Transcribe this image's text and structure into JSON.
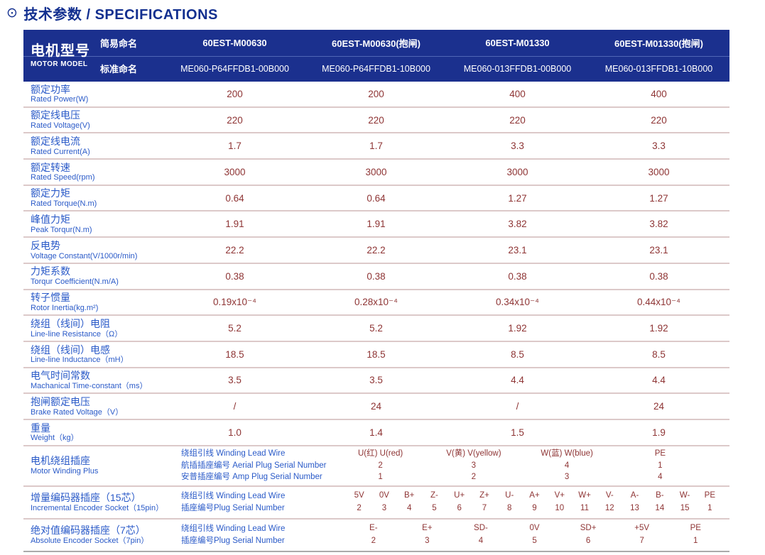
{
  "colors": {
    "title_blue": "#122f8f",
    "header_bg": "#1b308e",
    "header_divider": "#5066b6",
    "label_blue": "#2a5ac8",
    "value_maroon": "#8e3434",
    "row_divider": "#dcc9c9",
    "bottom_border": "#ababab"
  },
  "title": {
    "icon": "⊙",
    "text": "技术参数 / SPECIFICATIONS"
  },
  "header": {
    "model_cn": "电机型号",
    "model_en": "MOTOR MODEL",
    "simple_label": "简易命名",
    "standard_label": "标准命名",
    "simple_names": [
      "60EST-M00630",
      "60EST-M00630(抱闸)",
      "60EST-M01330",
      "60EST-M01330(抱闸)"
    ],
    "standard_names": [
      "ME060-P64FFDB1-00B000",
      "ME060-P64FFDB1-10B000",
      "ME060-013FFDB1-00B000",
      "ME060-013FFDB1-10B000"
    ]
  },
  "spec_rows": [
    {
      "cn": "额定功率",
      "en": "Rated Power(W)",
      "values": [
        "200",
        "200",
        "400",
        "400"
      ]
    },
    {
      "cn": "额定线电压",
      "en": "Rated Voltage(V)",
      "values": [
        "220",
        "220",
        "220",
        "220"
      ]
    },
    {
      "cn": "额定线电流",
      "en": "Rated Current(A)",
      "values": [
        "1.7",
        "1.7",
        "3.3",
        "3.3"
      ]
    },
    {
      "cn": "额定转速",
      "en": "Rated Speed(rpm)",
      "values": [
        "3000",
        "3000",
        "3000",
        "3000"
      ]
    },
    {
      "cn": "额定力矩",
      "en": "Rated Torque(N.m)",
      "values": [
        "0.64",
        "0.64",
        "1.27",
        "1.27"
      ]
    },
    {
      "cn": "峰值力矩",
      "en": "Peak Torqur(N.m)",
      "values": [
        "1.91",
        "1.91",
        "3.82",
        "3.82"
      ]
    },
    {
      "cn": "反电势",
      "en": "Voltage Constant(V/1000r/min)",
      "values": [
        "22.2",
        "22.2",
        "23.1",
        "23.1"
      ]
    },
    {
      "cn": "力矩系数",
      "en": "Torqur Coefficient(N.m/A)",
      "values": [
        "0.38",
        "0.38",
        "0.38",
        "0.38"
      ]
    },
    {
      "cn": "转子惯量",
      "en": "Rotor Inertia(kg.m²)",
      "values": [
        "0.19x10⁻⁴",
        "0.28x10⁻⁴",
        "0.34x10⁻⁴",
        "0.44x10⁻⁴"
      ]
    },
    {
      "cn": "绕组（线间）电阻",
      "en": "Line-line Resistance（Ω）",
      "values": [
        "5.2",
        "5.2",
        "1.92",
        "1.92"
      ]
    },
    {
      "cn": "绕组（线间）电感",
      "en": "Line-line Inductance（mH）",
      "values": [
        "18.5",
        "18.5",
        "8.5",
        "8.5"
      ]
    },
    {
      "cn": "电气时间常数",
      "en": "Machanical Time-constant（ms）",
      "values": [
        "3.5",
        "3.5",
        "4.4",
        "4.4"
      ]
    },
    {
      "cn": "抱闸额定电压",
      "en": "Brake Rated Voltage（V）",
      "values": [
        "/",
        "24",
        "/",
        "24"
      ]
    },
    {
      "cn": "重量",
      "en": "Weight（kg）",
      "values": [
        "1.0",
        "1.4",
        "1.5",
        "1.9"
      ]
    }
  ],
  "winding_socket": {
    "label_cn": "电机绕组插座",
    "label_en": "Motor Winding Plus",
    "sublabels": [
      "绕组引线 Winding Lead Wire",
      "航插插座编号 Aerial Plug Serial Number",
      "安普插座编号 Amp Plug Serial Number"
    ],
    "columns": [
      {
        "signal": "U(红) U(red)",
        "aerial_pin": "2",
        "amp_pin": "1"
      },
      {
        "signal": "V(黄) V(yellow)",
        "aerial_pin": "3",
        "amp_pin": "2"
      },
      {
        "signal": "W(蓝) W(blue)",
        "aerial_pin": "4",
        "amp_pin": "3"
      },
      {
        "signal": "PE",
        "aerial_pin": "1",
        "amp_pin": "4"
      }
    ]
  },
  "incremental_socket": {
    "label_cn": "增量编码器插座（15芯）",
    "label_en": "Incremental Encoder Socket（15pin）",
    "sublabels": [
      "绕组引线 Winding Lead Wire",
      "插座编号Plug Serial Number"
    ],
    "pins": [
      {
        "signal": "5V",
        "pin": "2"
      },
      {
        "signal": "0V",
        "pin": "3"
      },
      {
        "signal": "B+",
        "pin": "4"
      },
      {
        "signal": "Z-",
        "pin": "5"
      },
      {
        "signal": "U+",
        "pin": "6"
      },
      {
        "signal": "Z+",
        "pin": "7"
      },
      {
        "signal": "U-",
        "pin": "8"
      },
      {
        "signal": "A+",
        "pin": "9"
      },
      {
        "signal": "V+",
        "pin": "10"
      },
      {
        "signal": "W+",
        "pin": "11"
      },
      {
        "signal": "V-",
        "pin": "12"
      },
      {
        "signal": "A-",
        "pin": "13"
      },
      {
        "signal": "B-",
        "pin": "14"
      },
      {
        "signal": "W-",
        "pin": "15"
      },
      {
        "signal": "PE",
        "pin": "1"
      }
    ]
  },
  "absolute_socket": {
    "label_cn": "绝对值编码器插座（7芯）",
    "label_en": "Absolute Encoder Socket（7pin）",
    "sublabels": [
      "绕组引线 Winding Lead Wire",
      "插座编号Plug Serial Number"
    ],
    "pins": [
      {
        "signal": "E-",
        "pin": "2"
      },
      {
        "signal": "E+",
        "pin": "3"
      },
      {
        "signal": "SD-",
        "pin": "4"
      },
      {
        "signal": "0V",
        "pin": "5"
      },
      {
        "signal": "SD+",
        "pin": "6"
      },
      {
        "signal": "+5V",
        "pin": "7"
      },
      {
        "signal": "PE",
        "pin": "1"
      }
    ]
  }
}
